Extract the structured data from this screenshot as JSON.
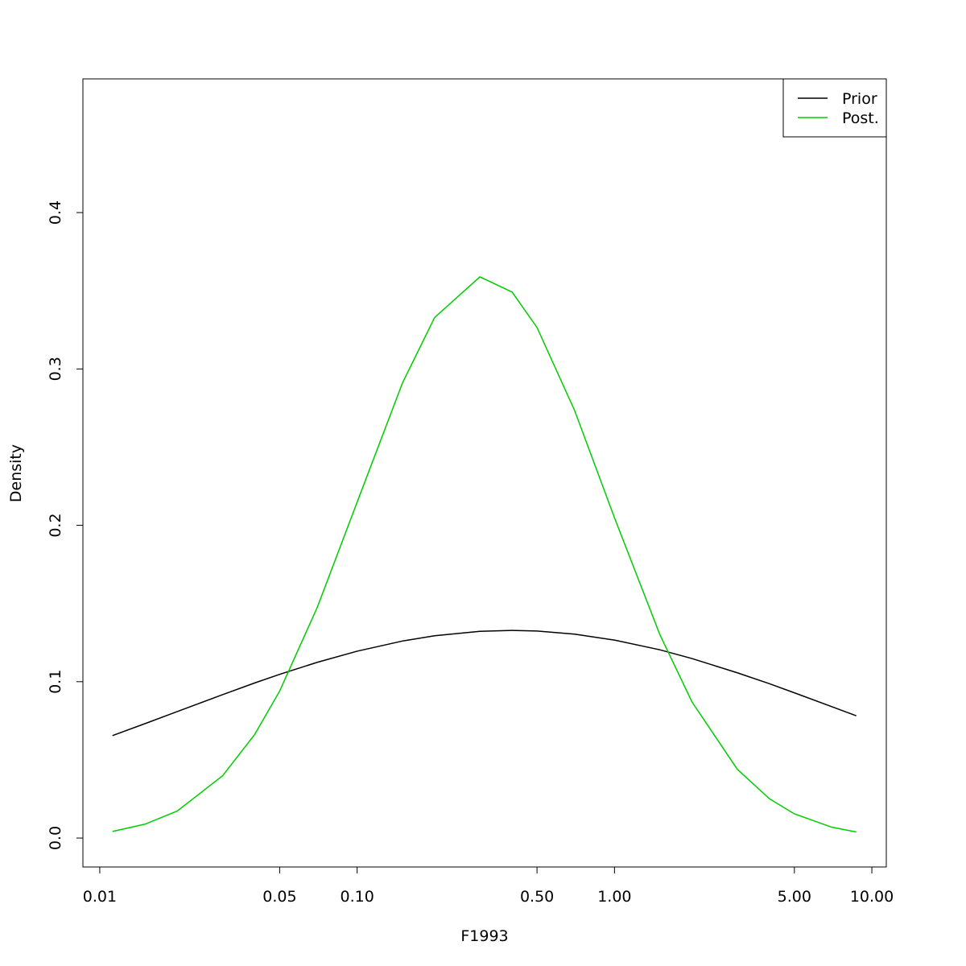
{
  "chart_data": {
    "type": "line",
    "x_label": "F1993",
    "y_label": "Density",
    "log_x": true,
    "x": [
      0.0112,
      0.015,
      0.02,
      0.03,
      0.04,
      0.05,
      0.07,
      0.1,
      0.15,
      0.2,
      0.3,
      0.4,
      0.5,
      0.7,
      1,
      1.5,
      2,
      3,
      4,
      5,
      7,
      8.7
    ],
    "series": [
      {
        "name": "Prior",
        "color": "#000000",
        "values": [
          0.0655,
          0.0732,
          0.0809,
          0.0917,
          0.0992,
          0.1047,
          0.1124,
          0.1195,
          0.126,
          0.1294,
          0.1322,
          0.1328,
          0.1324,
          0.1304,
          0.1266,
          0.1204,
          0.1148,
          0.1057,
          0.0987,
          0.0929,
          0.084,
          0.0782
        ]
      },
      {
        "name": "Post.",
        "color": "#00cd00",
        "values": [
          0.0042,
          0.0089,
          0.0173,
          0.0398,
          0.0663,
          0.094,
          0.1475,
          0.2148,
          0.291,
          0.3329,
          0.3589,
          0.3492,
          0.3265,
          0.2734,
          0.2048,
          0.1302,
          0.0871,
          0.044,
          0.0251,
          0.0155,
          0.0069,
          0.0039
        ]
      }
    ],
    "xlim": [
      0.0086,
      11.38
    ],
    "xticks": [
      0.01,
      0.05,
      {
        "value": 0.1,
        "label": "0.10"
      },
      {
        "value": 0.5,
        "label": "0.50"
      },
      {
        "value": 1,
        "label": "1.00"
      },
      {
        "value": 5,
        "label": "5.00"
      },
      {
        "value": 10,
        "label": "10.00"
      }
    ],
    "ylim": [
      -0.0185,
      0.4855
    ],
    "yticks": [
      {
        "value": 0,
        "label": "0.0"
      },
      0.1,
      0.2,
      0.3,
      0.4
    ],
    "legend": "topright"
  }
}
